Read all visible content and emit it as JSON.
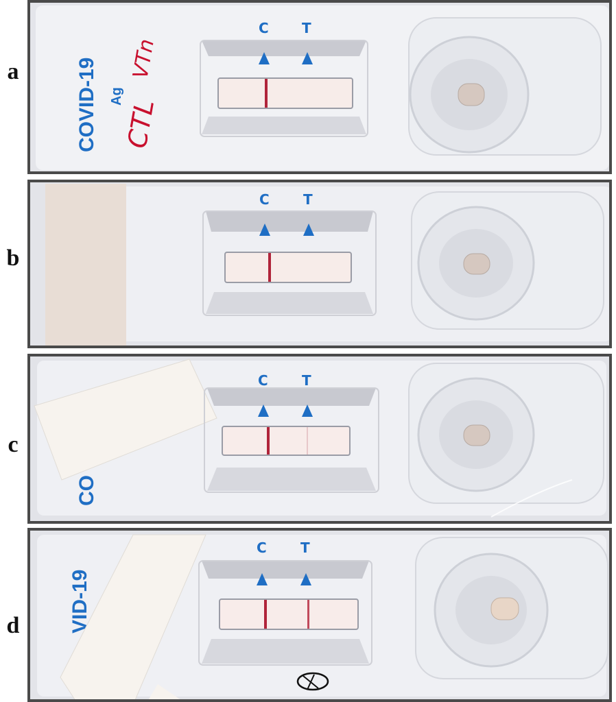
{
  "panels": [
    {
      "label": "a",
      "brand": "COVID-19",
      "brand_sub": "Ag",
      "handwriting_1": "VTn",
      "handwriting_2": "CTL",
      "control_mark": "C",
      "test_mark": "T",
      "control_line": true,
      "test_line": false
    },
    {
      "label": "b",
      "control_mark": "C",
      "test_mark": "T",
      "control_line": true,
      "test_line": false
    },
    {
      "label": "c",
      "brand": "CO",
      "control_mark": "C",
      "test_mark": "T",
      "control_line": true,
      "test_line": "faint"
    },
    {
      "label": "d",
      "brand": "VID-19",
      "control_mark": "C",
      "test_mark": "T",
      "control_line": true,
      "test_line": true
    }
  ],
  "colors": {
    "brand_blue": "#1f6ec4",
    "line_red": "#b0243a",
    "handwriting_red": "#c8102e",
    "frame": "#4a4a4a"
  }
}
